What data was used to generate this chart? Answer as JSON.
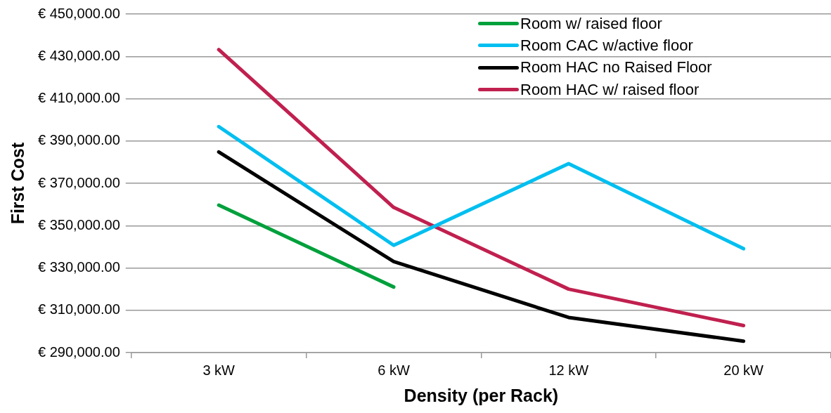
{
  "chart_data": {
    "type": "line",
    "xlabel": "Density (per Rack)",
    "ylabel": "First Cost",
    "categories": [
      "3 kW",
      "6 kW",
      "12 kW",
      "20 kW"
    ],
    "series": [
      {
        "name": "Room w/ raised floor",
        "color": "#00a03c",
        "values": [
          359700,
          321000,
          null,
          null
        ]
      },
      {
        "name": "Room CAC w/active floor",
        "color": "#00bff0",
        "values": [
          396800,
          340700,
          379300,
          339100
        ]
      },
      {
        "name": "Room HAC no Raised Floor",
        "color": "#000000",
        "values": [
          384800,
          333000,
          306600,
          295400
        ]
      },
      {
        "name": "Room HAC w/ raised floor",
        "color": "#c0204f",
        "values": [
          433200,
          358600,
          320000,
          302800
        ]
      }
    ],
    "ylim": [
      290000,
      450000
    ],
    "yticks": [
      {
        "value": 290000,
        "label": "€ 290,000.00"
      },
      {
        "value": 310000,
        "label": "€ 310,000.00"
      },
      {
        "value": 330000,
        "label": "€ 330,000.00"
      },
      {
        "value": 350000,
        "label": "€ 350,000.00"
      },
      {
        "value": 370000,
        "label": "€ 370,000.00"
      },
      {
        "value": 390000,
        "label": "€ 390,000.00"
      },
      {
        "value": 410000,
        "label": "€ 410,000.00"
      },
      {
        "value": 430000,
        "label": "€ 430,000.00"
      },
      {
        "value": 450000,
        "label": "€ 450,000.00"
      }
    ],
    "grid": "y",
    "legend": "top right",
    "marker": "none",
    "line_style": "solid"
  }
}
